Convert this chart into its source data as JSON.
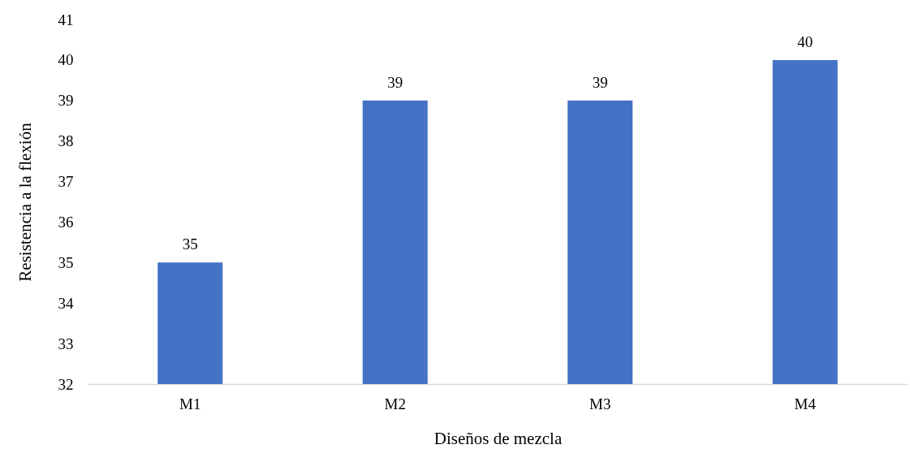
{
  "chart_data": {
    "type": "bar",
    "xlabel": "Diseños de mezcla",
    "ylabel": "Resistencia a la flexión",
    "categories": [
      "M1",
      "M2",
      "M3",
      "M4"
    ],
    "values": [
      35,
      39,
      39,
      40
    ],
    "color": "#4472c4",
    "ylim": [
      32,
      41
    ],
    "yticks": [
      32,
      33,
      34,
      35,
      36,
      37,
      38,
      39,
      40,
      41
    ],
    "data_labels": true
  }
}
